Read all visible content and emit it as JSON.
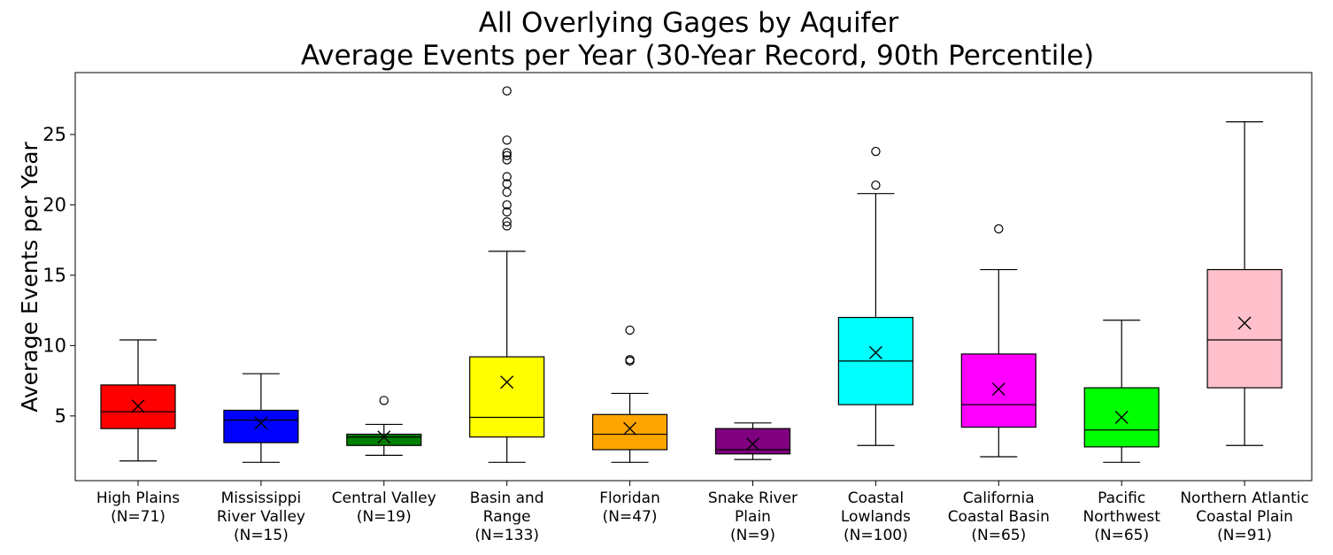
{
  "chart_data": {
    "type": "box",
    "title": "All Overlying Gages by Aquifer",
    "subtitle": "Average Events per Year (30-Year Record, 90th Percentile)",
    "xlabel": "",
    "ylabel": "Average Events per Year",
    "ylim": [
      0.4,
      29.4
    ],
    "yticks": [
      5,
      10,
      15,
      20,
      25
    ],
    "grid": false,
    "legend": "none",
    "mean_marker": "x",
    "boxes": [
      {
        "label": [
          "High Plains",
          "(N=71)"
        ],
        "color": "#ff0000",
        "whisker_low": 1.8,
        "q1": 4.1,
        "median": 5.3,
        "q3": 7.2,
        "whisker_high": 10.4,
        "mean": 5.7,
        "outliers": []
      },
      {
        "label": [
          "Mississippi",
          "River Valley",
          "(N=15)"
        ],
        "color": "#0000ff",
        "whisker_low": 1.7,
        "q1": 3.1,
        "median": 4.7,
        "q3": 5.4,
        "whisker_high": 8.0,
        "mean": 4.5,
        "outliers": []
      },
      {
        "label": [
          "Central Valley",
          "(N=19)"
        ],
        "color": "#008000",
        "whisker_low": 2.2,
        "q1": 2.9,
        "median": 3.5,
        "q3": 3.7,
        "whisker_high": 4.4,
        "mean": 3.5,
        "outliers": [
          6.1
        ]
      },
      {
        "label": [
          "Basin and",
          "Range",
          "(N=133)"
        ],
        "color": "#ffff00",
        "whisker_low": 1.7,
        "q1": 3.5,
        "median": 4.9,
        "q3": 9.2,
        "whisker_high": 16.7,
        "mean": 7.4,
        "outliers": [
          18.5,
          18.8,
          19.5,
          20.0,
          20.9,
          21.5,
          22.0,
          23.2,
          23.5,
          23.7,
          24.6,
          28.1
        ]
      },
      {
        "label": [
          "Floridan",
          "(N=47)"
        ],
        "color": "#ffa500",
        "whisker_low": 1.7,
        "q1": 2.6,
        "median": 3.7,
        "q3": 5.1,
        "whisker_high": 6.6,
        "mean": 4.1,
        "outliers": [
          8.9,
          9.0,
          11.1
        ]
      },
      {
        "label": [
          "Snake River",
          "Plain",
          "(N=9)"
        ],
        "color": "#800080",
        "whisker_low": 1.9,
        "q1": 2.3,
        "median": 2.6,
        "q3": 4.1,
        "whisker_high": 4.5,
        "mean": 3.0,
        "outliers": []
      },
      {
        "label": [
          "Coastal",
          "Lowlands",
          "(N=100)"
        ],
        "color": "#00ffff",
        "whisker_low": 2.9,
        "q1": 5.8,
        "median": 8.9,
        "q3": 12.0,
        "whisker_high": 20.8,
        "mean": 9.5,
        "outliers": [
          21.4,
          23.8
        ]
      },
      {
        "label": [
          "California",
          "Coastal Basin",
          "(N=65)"
        ],
        "color": "#ff00ff",
        "whisker_low": 2.1,
        "q1": 4.2,
        "median": 5.8,
        "q3": 9.4,
        "whisker_high": 15.4,
        "mean": 6.9,
        "outliers": [
          18.3
        ]
      },
      {
        "label": [
          "Pacific",
          "Northwest",
          "(N=65)"
        ],
        "color": "#00ff00",
        "whisker_low": 1.7,
        "q1": 2.8,
        "median": 4.0,
        "q3": 7.0,
        "whisker_high": 11.8,
        "mean": 4.9,
        "outliers": []
      },
      {
        "label": [
          "Northern Atlantic",
          "Coastal Plain",
          "(N=91)"
        ],
        "color": "#ffc0cb",
        "whisker_low": 2.9,
        "q1": 7.0,
        "median": 10.4,
        "q3": 15.4,
        "whisker_high": 25.9,
        "mean": 11.6,
        "outliers": []
      }
    ]
  }
}
